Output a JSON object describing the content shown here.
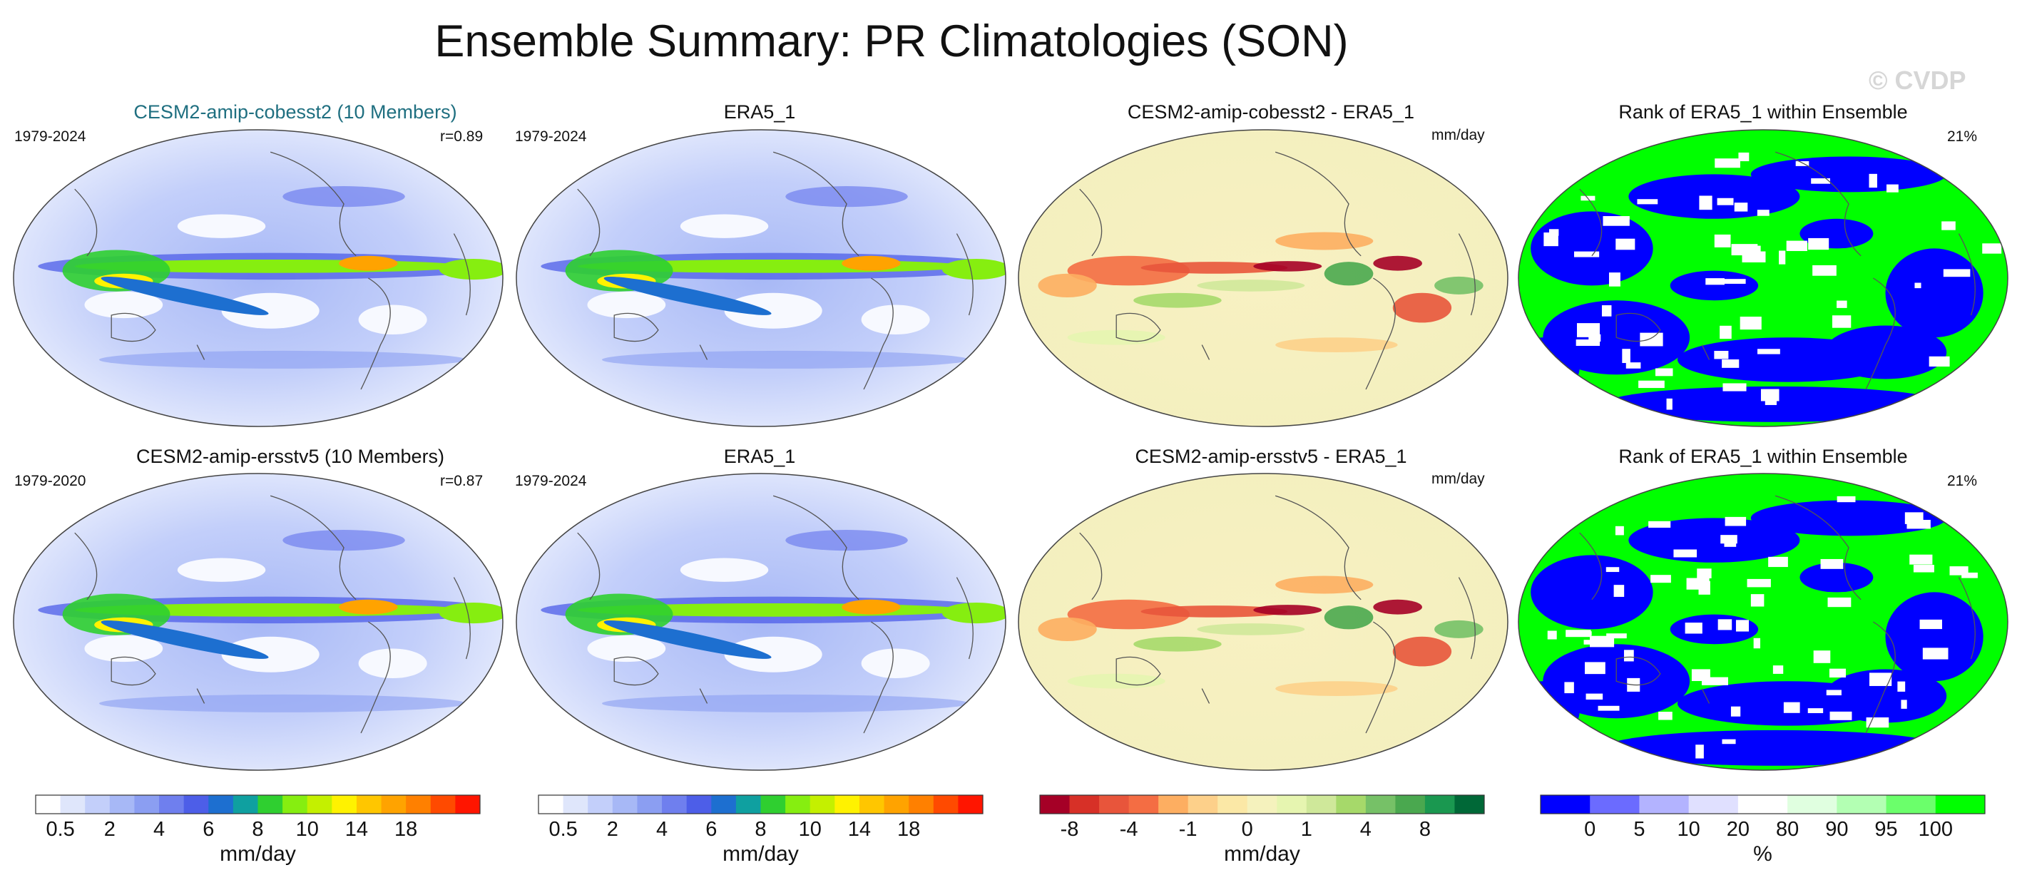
{
  "title": "Ensemble Summary: PR Climatologies (SON)",
  "watermark": "© CVDP",
  "colors": {
    "title_row1": "#1f6f80",
    "title_row2": "#5a8a5a",
    "text": "#111111",
    "ocean_outline": "#666666"
  },
  "rows": [
    {
      "model_title": "CESM2-amip-cobesst2 (10 Members)",
      "model_years": "1979-2024",
      "pattern_corr": "r=0.89",
      "obs_title": "ERA5_1",
      "obs_years": "1979-2024",
      "diff_title": "CESM2-amip-cobesst2 - ERA5_1",
      "diff_units": "mm/day",
      "rank_title": "Rank of ERA5_1 within Ensemble",
      "rank_pct": "21%"
    },
    {
      "model_title": "CESM2-amip-ersstv5 (10 Members)",
      "model_years": "1979-2020",
      "pattern_corr": "r=0.87",
      "obs_title": "ERA5_1",
      "obs_years": "1979-2024",
      "diff_title": "CESM2-amip-ersstv5 - ERA5_1",
      "diff_units": "mm/day",
      "rank_title": "Rank of ERA5_1 within Ensemble",
      "rank_pct": "21%"
    }
  ],
  "colorbars": [
    {
      "name": "precip-model",
      "colors": [
        "#ffffff",
        "#dfe6fb",
        "#c3cffa",
        "#a7b8f6",
        "#8b9ef2",
        "#6f7fee",
        "#4d5ee8",
        "#1d6fd0",
        "#0fa0a0",
        "#2fcf30",
        "#86ee10",
        "#c4f000",
        "#fff200",
        "#ffc600",
        "#ffa300",
        "#ff8000",
        "#ff4a00",
        "#ff1500"
      ],
      "labels": [
        "0.5",
        "2",
        "4",
        "6",
        "8",
        "10",
        "14",
        "18"
      ],
      "label_index": [
        1,
        3,
        5,
        7,
        9,
        11,
        13,
        15
      ],
      "units": "mm/day"
    },
    {
      "name": "precip-obs",
      "colors": [
        "#ffffff",
        "#dfe6fb",
        "#c3cffa",
        "#a7b8f6",
        "#8b9ef2",
        "#6f7fee",
        "#4d5ee8",
        "#1d6fd0",
        "#0fa0a0",
        "#2fcf30",
        "#86ee10",
        "#c4f000",
        "#fff200",
        "#ffc600",
        "#ffa300",
        "#ff8000",
        "#ff4a00",
        "#ff1500"
      ],
      "labels": [
        "0.5",
        "2",
        "4",
        "6",
        "8",
        "10",
        "14",
        "18"
      ],
      "label_index": [
        1,
        3,
        5,
        7,
        9,
        11,
        13,
        15
      ],
      "units": "mm/day"
    },
    {
      "name": "precip-diff",
      "colors": [
        "#a50026",
        "#d73027",
        "#e8553b",
        "#f46d43",
        "#fdae61",
        "#fdd08a",
        "#fbe8a6",
        "#f5f2bd",
        "#e6f5b0",
        "#cfe89a",
        "#a6d96a",
        "#76c167",
        "#4aa84f",
        "#1a9850",
        "#006837"
      ],
      "labels": [
        "-8",
        "-4",
        "-1",
        "0",
        "1",
        "4",
        "8"
      ],
      "label_index": [
        1,
        3,
        5,
        7,
        9,
        11,
        13
      ],
      "units": "mm/day"
    },
    {
      "name": "rank",
      "colors": [
        "#0000ff",
        "#6b6bff",
        "#b3b3ff",
        "#e0e0ff",
        "#ffffff",
        "#e0ffe0",
        "#b3ffb3",
        "#6bff6b",
        "#00ff00"
      ],
      "labels": [
        "0",
        "5",
        "10",
        "20",
        "80",
        "90",
        "95",
        "100"
      ],
      "label_index": [
        1,
        2,
        3,
        4,
        5,
        6,
        7,
        8
      ],
      "units": "%"
    }
  ],
  "chart_data": [
    {
      "type": "heatmap",
      "title": "CESM2-amip-cobesst2 (10 Members)",
      "field": "PR climatology SON",
      "period": "1979-2024",
      "pattern_correlation": 0.89,
      "units": "mm/day",
      "color_levels": [
        0.5,
        1,
        2,
        3,
        4,
        5,
        6,
        7,
        8,
        9,
        10,
        12,
        14,
        16,
        18,
        20,
        22
      ]
    },
    {
      "type": "heatmap",
      "title": "ERA5_1",
      "field": "PR climatology SON",
      "period": "1979-2024",
      "units": "mm/day",
      "color_levels": [
        0.5,
        1,
        2,
        3,
        4,
        5,
        6,
        7,
        8,
        9,
        10,
        12,
        14,
        16,
        18,
        20,
        22
      ]
    },
    {
      "type": "heatmap",
      "title": "CESM2-amip-cobesst2 - ERA5_1",
      "field": "PR difference SON",
      "units": "mm/day",
      "color_levels": [
        -8,
        -6,
        -4,
        -2,
        -1,
        -0.5,
        0,
        0.5,
        1,
        2,
        4,
        6,
        8
      ]
    },
    {
      "type": "heatmap",
      "title": "Rank of ERA5_1 within Ensemble",
      "units": "%",
      "rank_summary": "21%",
      "color_levels": [
        0,
        5,
        10,
        20,
        80,
        90,
        95,
        100
      ]
    },
    {
      "type": "heatmap",
      "title": "CESM2-amip-ersstv5 (10 Members)",
      "field": "PR climatology SON",
      "period": "1979-2020",
      "pattern_correlation": 0.87,
      "units": "mm/day",
      "color_levels": [
        0.5,
        1,
        2,
        3,
        4,
        5,
        6,
        7,
        8,
        9,
        10,
        12,
        14,
        16,
        18,
        20,
        22
      ]
    },
    {
      "type": "heatmap",
      "title": "ERA5_1",
      "field": "PR climatology SON",
      "period": "1979-2024",
      "units": "mm/day",
      "color_levels": [
        0.5,
        1,
        2,
        3,
        4,
        5,
        6,
        7,
        8,
        9,
        10,
        12,
        14,
        16,
        18,
        20,
        22
      ]
    },
    {
      "type": "heatmap",
      "title": "CESM2-amip-ersstv5 - ERA5_1",
      "field": "PR difference SON",
      "units": "mm/day",
      "color_levels": [
        -8,
        -6,
        -4,
        -2,
        -1,
        -0.5,
        0,
        0.5,
        1,
        2,
        4,
        6,
        8
      ]
    },
    {
      "type": "heatmap",
      "title": "Rank of ERA5_1 within Ensemble",
      "units": "%",
      "rank_summary": "21%",
      "color_levels": [
        0,
        5,
        10,
        20,
        80,
        90,
        95,
        100
      ]
    }
  ]
}
